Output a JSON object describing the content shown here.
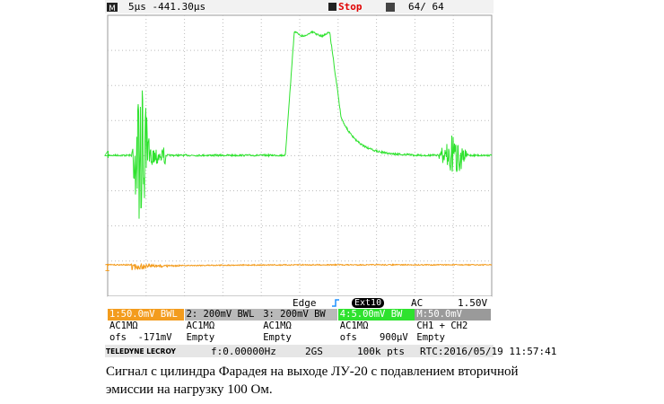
{
  "status_bar": {
    "timebase": "5µs -441.30µs",
    "state": "Stop",
    "acquisitions": "64/ 64"
  },
  "markers": {
    "ch4": "4",
    "ch1": "1"
  },
  "trigger": {
    "mode": "Edge",
    "source": "Ext10",
    "coupling": "AC",
    "level": "1.50V"
  },
  "channels": [
    {
      "header": "1:50.0mV BWL",
      "line1": "AC1MΩ",
      "line2": "ofs  -171mV"
    },
    {
      "header": "2: 200mV BWL",
      "line1": "AC1MΩ",
      "line2": "Empty"
    },
    {
      "header": "3: 200mV BW",
      "line1": "AC1MΩ",
      "line2": "Empty"
    },
    {
      "header": "4:5.00mV BW",
      "line1": "AC1MΩ",
      "line2": "ofs    900µV"
    },
    {
      "header": "M:50.0mV",
      "line1": "CH1 + CH2",
      "line2": "Empty"
    }
  ],
  "footer": {
    "brand": "TELEDYNE LECROY",
    "frequency": "f:0.00000Hz",
    "sample_rate": "2GS",
    "points": "100k pts",
    "clock": "RTC:2016/05/19 11:57:41"
  },
  "caption": {
    "line1": "Сигнал с цилиндра Фарадея на выходе ЛУ-20 с подавлением вторичной",
    "line2": "эмиссии на нагрузку 100 Ом."
  }
}
